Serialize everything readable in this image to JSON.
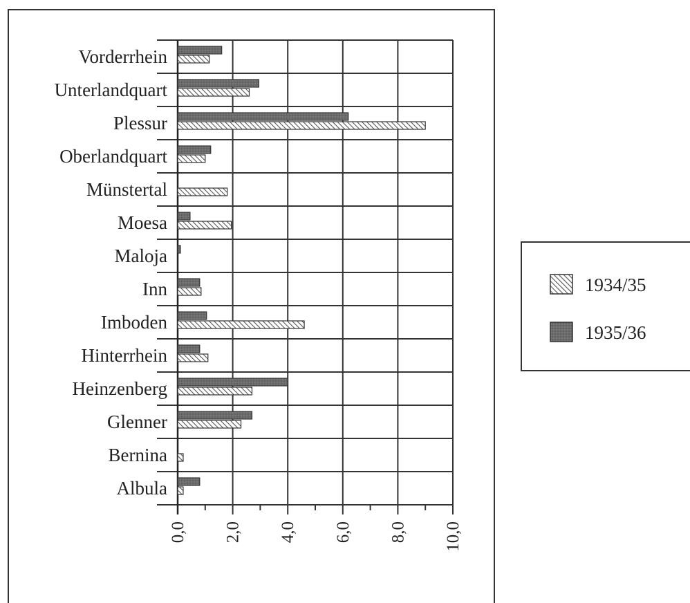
{
  "chart_data": {
    "type": "bar",
    "orientation": "horizontal",
    "categories": [
      "Albula",
      "Bernina",
      "Glenner",
      "Heinzenberg",
      "Hinterrhein",
      "Imboden",
      "Inn",
      "Maloja",
      "Moesa",
      "Münstertal",
      "Oberlandquart",
      "Plessur",
      "Unterlandquart",
      "Vorderrhein"
    ],
    "series": [
      {
        "name": "1934/35",
        "pattern": "hatched",
        "values": [
          0.2,
          0.2,
          2.3,
          2.7,
          1.1,
          4.6,
          0.85,
          0.0,
          1.95,
          1.8,
          1.0,
          9.0,
          2.6,
          1.15
        ]
      },
      {
        "name": "1935/36",
        "pattern": "solid",
        "color": "#6d6d6d",
        "values": [
          0.8,
          0.0,
          2.7,
          4.0,
          0.8,
          1.05,
          0.8,
          0.1,
          0.45,
          0.0,
          1.2,
          6.2,
          2.95,
          1.6
        ]
      }
    ],
    "x_ticks": [
      "0,0",
      "2,0",
      "4,0",
      "6,0",
      "8,0",
      "10,0"
    ],
    "xlim": [
      0,
      10
    ],
    "grid": true,
    "legend_position": "right",
    "title": "",
    "xlabel": "",
    "ylabel": ""
  }
}
